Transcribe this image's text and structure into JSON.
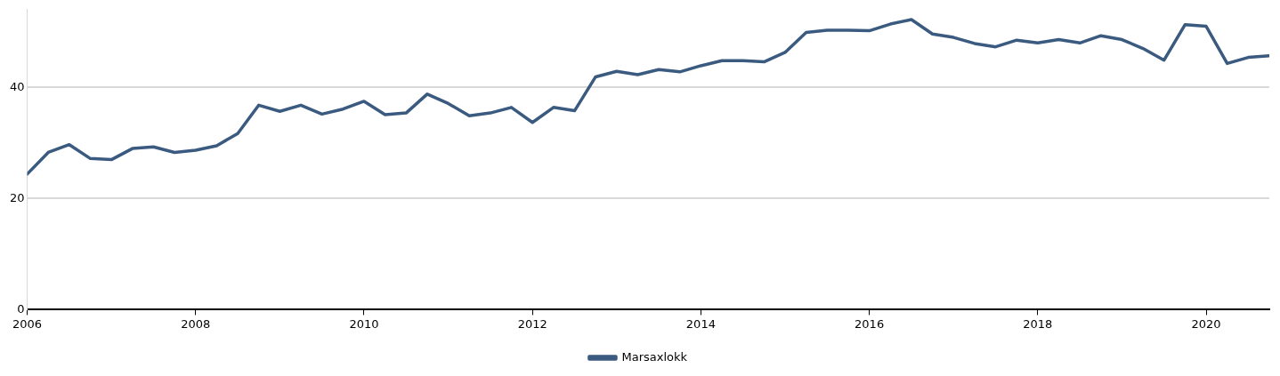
{
  "chart_data": {
    "type": "line",
    "x": [
      2006,
      2006.25,
      2006.5,
      2006.75,
      2007,
      2007.25,
      2007.5,
      2007.75,
      2008,
      2008.25,
      2008.5,
      2008.75,
      2009,
      2009.25,
      2009.5,
      2009.75,
      2010,
      2010.25,
      2010.5,
      2010.75,
      2011,
      2011.25,
      2011.5,
      2011.75,
      2012,
      2012.25,
      2012.5,
      2012.75,
      2013,
      2013.25,
      2013.5,
      2013.75,
      2014,
      2014.25,
      2014.5,
      2014.75,
      2015,
      2015.25,
      2015.5,
      2015.75,
      2016,
      2016.25,
      2016.5,
      2016.75,
      2017,
      2017.25,
      2017.5,
      2017.75,
      2018,
      2018.25,
      2018.5,
      2018.75,
      2019,
      2019.25,
      2019.5,
      2019.75,
      2020,
      2020.25,
      2020.5,
      2020.75
    ],
    "series": [
      {
        "name": "Marsaxlokk",
        "color": "#3a5a80",
        "values": [
          24.4,
          28.3,
          29.7,
          27.2,
          27.0,
          29.0,
          29.3,
          28.3,
          28.7,
          29.5,
          31.7,
          36.8,
          35.7,
          36.8,
          35.2,
          36.1,
          37.5,
          35.1,
          35.4,
          38.8,
          37.1,
          34.9,
          35.4,
          36.4,
          33.7,
          36.4,
          35.8,
          41.9,
          42.9,
          42.3,
          43.2,
          42.8,
          43.9,
          44.8,
          44.8,
          44.6,
          46.3,
          49.9,
          50.3,
          50.3,
          50.2,
          51.4,
          52.2,
          49.6,
          49.0,
          47.9,
          47.3,
          48.5,
          48.0,
          48.6,
          48.0,
          49.3,
          48.6,
          47.0,
          44.9,
          51.3,
          51.0,
          44.3,
          45.4,
          45.7
        ]
      }
    ],
    "xlim": [
      2006,
      2020.75
    ],
    "xticks": [
      2006,
      2008,
      2010,
      2012,
      2014,
      2016,
      2018,
      2020
    ],
    "ylim": [
      0,
      54
    ],
    "yticks": [
      0,
      20,
      40
    ],
    "grid": "y",
    "legend": "bottom",
    "marker": "none",
    "line_style": "solid"
  }
}
